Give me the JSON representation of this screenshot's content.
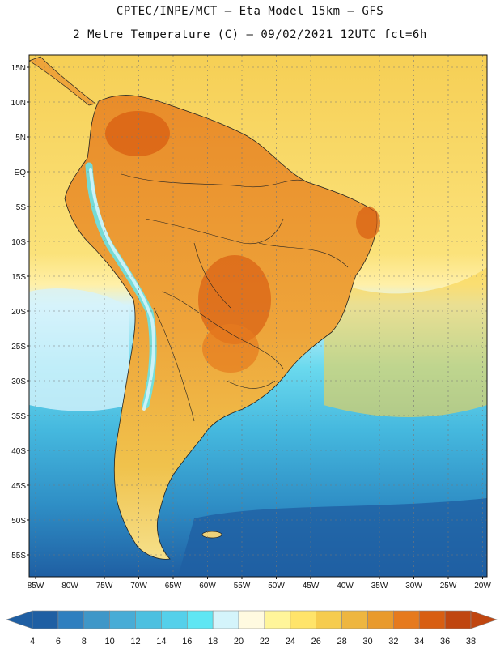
{
  "title": {
    "line1": "CPTEC/INPE/MCT –  Eta Model 15km – GFS",
    "line2": "2 Metre Temperature (C) – 09/02/2021 12UTC fct=6h"
  },
  "map": {
    "lat_labels": [
      "15N",
      "10N",
      "5N",
      "EQ",
      "5S",
      "10S",
      "15S",
      "20S",
      "25S",
      "30S",
      "35S",
      "40S",
      "45S",
      "50S",
      "55S"
    ],
    "lon_labels": [
      "85W",
      "80W",
      "75W",
      "70W",
      "65W",
      "60W",
      "55W",
      "50W",
      "45W",
      "40W",
      "35W",
      "30W",
      "25W",
      "20W"
    ]
  },
  "colorbar": {
    "labels": [
      "4",
      "6",
      "8",
      "10",
      "12",
      "14",
      "16",
      "18",
      "20",
      "22",
      "24",
      "26",
      "28",
      "30",
      "32",
      "34",
      "36",
      "38"
    ],
    "colors": [
      "#1f5fa3",
      "#2f7fbf",
      "#3f97c8",
      "#48acd6",
      "#4cc0e0",
      "#55d0ea",
      "#5fe6f3",
      "#d4f4fb",
      "#fffae0",
      "#fff59a",
      "#ffe46a",
      "#f6cc4e",
      "#eeb640",
      "#e99a2c",
      "#e67a1e",
      "#d85e12",
      "#c04610"
    ]
  }
}
